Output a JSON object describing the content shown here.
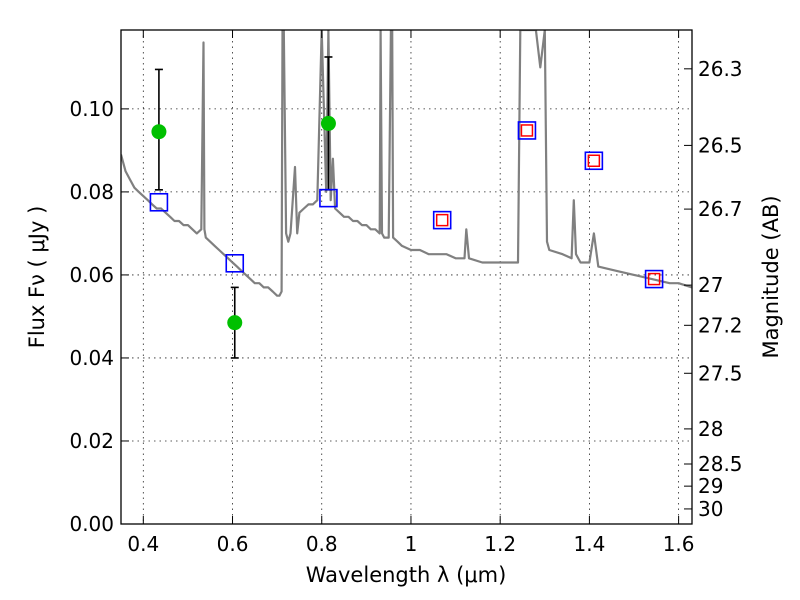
{
  "chart_data": {
    "type": "line",
    "xlabel": "Wavelength  λ (μm)",
    "ylabel": "Flux  Fν  ( μJy )",
    "y2label": "Magnitude (AB)",
    "xlim": [
      0.35,
      1.63
    ],
    "ylim": [
      0.0,
      0.119
    ],
    "grid": true,
    "x_ticks": [
      0.4,
      0.6,
      0.8,
      1.0,
      1.2,
      1.4,
      1.6
    ],
    "x_tick_labels": [
      "0.4",
      "0.6",
      "0.8",
      "1",
      "1.2",
      "1.4",
      "1.6"
    ],
    "y_ticks": [
      0.0,
      0.02,
      0.04,
      0.06,
      0.08,
      0.1
    ],
    "y_tick_labels": [
      "0.00",
      "0.02",
      "0.04",
      "0.06",
      "0.08",
      "0.10"
    ],
    "mag_ticks": [
      26.3,
      26.5,
      26.7,
      27,
      27.2,
      27.5,
      28,
      28.5,
      29,
      30
    ],
    "mag_tick_labels": [
      "26.3",
      "26.5",
      "26.7",
      "27",
      "27.2",
      "27.5",
      "28",
      "28.5",
      "29",
      "30"
    ],
    "colors": {
      "model": "#808080",
      "observed": "#00c000",
      "model_blue": "#0000ff",
      "model_red": "#ff0000",
      "errorbar": "#000000"
    },
    "series": [
      {
        "style": "line",
        "x": [
          0.35,
          0.36,
          0.37,
          0.38,
          0.39,
          0.4,
          0.41,
          0.42,
          0.43,
          0.44,
          0.45,
          0.46,
          0.47,
          0.48,
          0.49,
          0.5,
          0.51,
          0.52,
          0.53,
          0.535,
          0.537,
          0.54,
          0.55,
          0.56,
          0.57,
          0.58,
          0.59,
          0.6,
          0.61,
          0.62,
          0.63,
          0.64,
          0.65,
          0.66,
          0.67,
          0.68,
          0.69,
          0.7,
          0.705,
          0.71,
          0.712,
          0.715,
          0.72,
          0.725,
          0.73,
          0.74,
          0.745,
          0.75,
          0.76,
          0.77,
          0.78,
          0.79,
          0.8,
          0.81,
          0.815,
          0.82,
          0.825,
          0.83,
          0.84,
          0.85,
          0.86,
          0.87,
          0.88,
          0.89,
          0.9,
          0.91,
          0.92,
          0.93,
          0.932,
          0.935,
          0.94,
          0.95,
          0.955,
          0.958,
          0.96,
          0.97,
          0.98,
          1.0,
          1.02,
          1.04,
          1.06,
          1.08,
          1.1,
          1.12,
          1.124,
          1.13,
          1.16,
          1.2,
          1.24,
          1.245,
          1.25,
          1.26,
          1.27,
          1.28,
          1.29,
          1.3,
          1.305,
          1.31,
          1.34,
          1.36,
          1.365,
          1.37,
          1.38,
          1.4,
          1.41,
          1.42,
          1.46,
          1.5,
          1.54,
          1.58,
          1.6,
          1.63
        ],
        "y": [
          0.089,
          0.085,
          0.083,
          0.081,
          0.08,
          0.079,
          0.078,
          0.077,
          0.076,
          0.076,
          0.075,
          0.074,
          0.073,
          0.073,
          0.072,
          0.072,
          0.071,
          0.07,
          0.071,
          0.116,
          0.071,
          0.069,
          0.068,
          0.067,
          0.066,
          0.065,
          0.064,
          0.063,
          0.062,
          0.061,
          0.06,
          0.059,
          0.058,
          0.058,
          0.057,
          0.057,
          0.056,
          0.055,
          0.055,
          0.056,
          0.119,
          0.119,
          0.07,
          0.068,
          0.07,
          0.086,
          0.07,
          0.075,
          0.076,
          0.077,
          0.077,
          0.078,
          0.119,
          0.08,
          0.119,
          0.078,
          0.088,
          0.076,
          0.075,
          0.074,
          0.074,
          0.073,
          0.073,
          0.072,
          0.072,
          0.071,
          0.071,
          0.07,
          0.119,
          0.07,
          0.069,
          0.069,
          0.119,
          0.119,
          0.069,
          0.068,
          0.067,
          0.066,
          0.066,
          0.065,
          0.065,
          0.065,
          0.064,
          0.064,
          0.071,
          0.064,
          0.063,
          0.063,
          0.063,
          0.119,
          0.119,
          0.119,
          0.119,
          0.119,
          0.11,
          0.119,
          0.068,
          0.066,
          0.065,
          0.064,
          0.078,
          0.065,
          0.063,
          0.063,
          0.07,
          0.062,
          0.061,
          0.06,
          0.059,
          0.058,
          0.058,
          0.057
        ]
      },
      {
        "style": "markers-circle-errorbar",
        "x": [
          0.435,
          0.605,
          0.815
        ],
        "y": [
          0.0945,
          0.0485,
          0.0965
        ],
        "yerr_low": [
          0.0805,
          0.04,
          0.0805
        ],
        "yerr_high": [
          0.1095,
          0.057,
          0.1125
        ]
      },
      {
        "style": "markers-square-blue",
        "x": [
          0.435,
          0.605,
          0.815,
          1.07,
          1.26,
          1.41,
          1.545
        ],
        "y": [
          0.0775,
          0.0628,
          0.0785,
          0.0732,
          0.0948,
          0.0875,
          0.059
        ]
      },
      {
        "style": "markers-square-red",
        "x": [
          1.07,
          1.26,
          1.41,
          1.545
        ],
        "y": [
          0.0732,
          0.0948,
          0.0875,
          0.059
        ]
      }
    ]
  }
}
